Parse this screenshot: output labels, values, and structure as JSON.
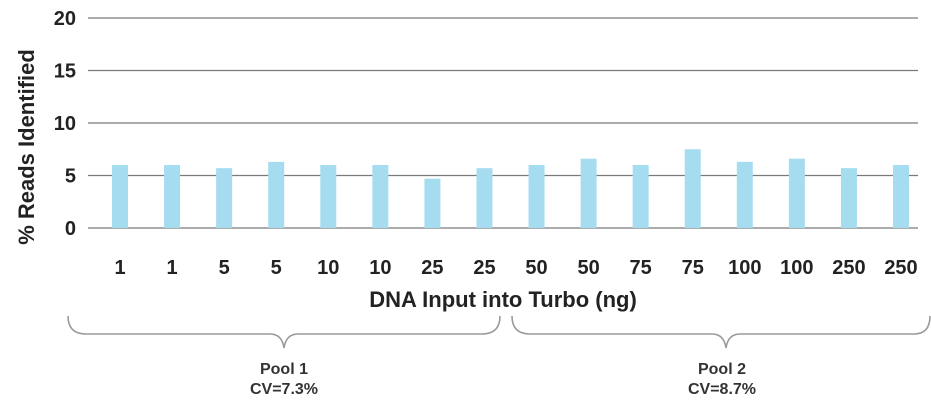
{
  "chart_data": {
    "type": "bar",
    "categories": [
      "1",
      "1",
      "5",
      "5",
      "10",
      "10",
      "25",
      "25",
      "50",
      "50",
      "75",
      "75",
      "100",
      "100",
      "250",
      "250"
    ],
    "values": [
      6.0,
      6.0,
      5.7,
      6.3,
      6.0,
      6.0,
      4.7,
      5.7,
      6.0,
      6.6,
      6.0,
      7.5,
      6.3,
      6.6,
      5.7,
      6.0
    ],
    "xlabel": "DNA Input into Turbo (ng)",
    "ylabel": "% Reads Identified",
    "ylim": [
      0,
      20
    ],
    "yticks": [
      0,
      5,
      10,
      15,
      20
    ],
    "grid": true,
    "bar_color": "#a6dcf0",
    "groups": [
      {
        "name": "Pool 1",
        "cv": "CV=7.3%",
        "from_index": 0,
        "to_index": 7
      },
      {
        "name": "Pool 2",
        "cv": "CV=8.7%",
        "from_index": 8,
        "to_index": 15
      }
    ]
  }
}
